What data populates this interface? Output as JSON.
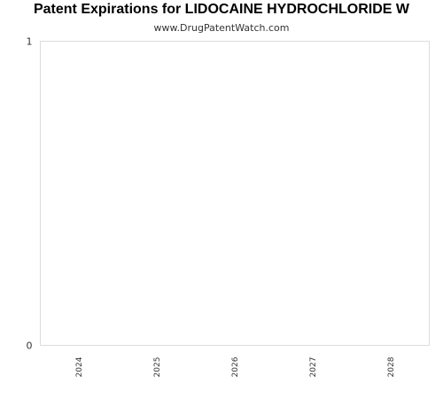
{
  "chart_data": {
    "type": "bar",
    "title": "Patent Expirations for LIDOCAINE HYDROCHLORIDE W",
    "subtitle": "www.DrugPatentWatch.com",
    "categories": [
      "2024",
      "2025",
      "2026",
      "2027",
      "2028"
    ],
    "series": [
      {
        "values": [
          0,
          0,
          0,
          0,
          0
        ]
      }
    ],
    "xlabel": "",
    "ylabel": "",
    "ylim": [
      0,
      1
    ],
    "yticks": [
      "0",
      "1"
    ],
    "grid": false,
    "legend": "none",
    "colors": {
      "plot_border": "#dddddd",
      "text": "#333333",
      "bar": "#4f81bd"
    }
  }
}
